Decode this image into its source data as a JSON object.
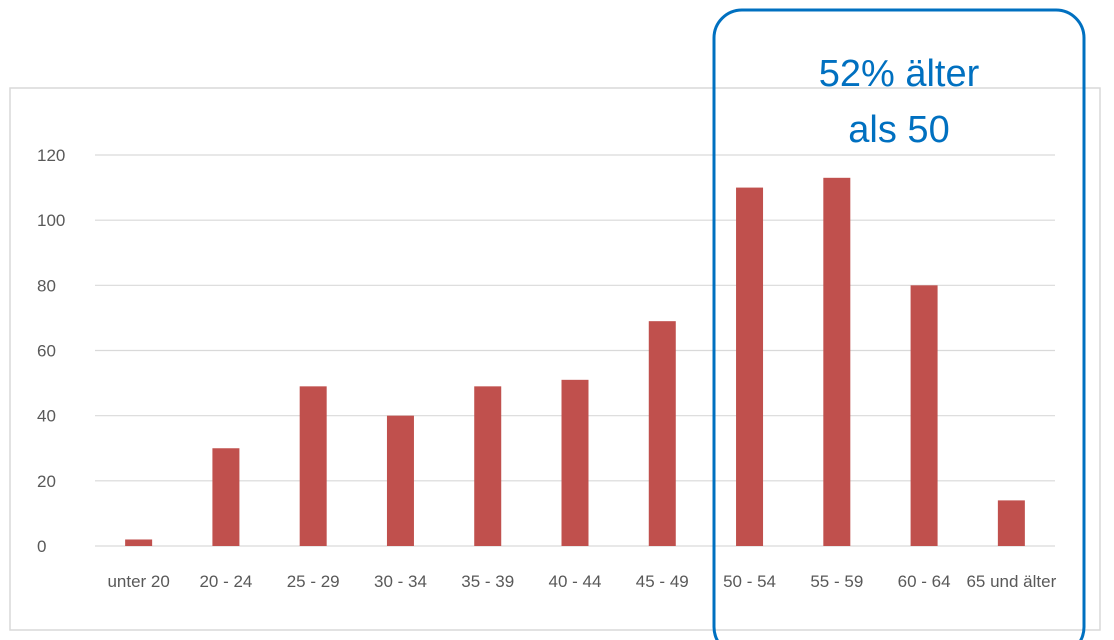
{
  "chart_data": {
    "type": "bar",
    "categories": [
      "unter 20",
      "20 - 24",
      "25 - 29",
      "30 - 34",
      "35 - 39",
      "40 - 44",
      "45 - 49",
      "50 - 54",
      "55 - 59",
      "60 - 64",
      "65 und älter"
    ],
    "values": [
      2,
      30,
      49,
      40,
      49,
      51,
      69,
      110,
      113,
      80,
      14
    ],
    "title": "",
    "xlabel": "",
    "ylabel": "",
    "ylim": [
      0,
      120
    ],
    "yticks": [
      0,
      20,
      40,
      60,
      80,
      100,
      120
    ],
    "grid": true,
    "bar_color": "#c0504d",
    "highlight": {
      "categories": [
        "50 - 54",
        "55 - 59",
        "60 - 64",
        "65 und älter"
      ],
      "text_line1": "52% älter",
      "text_line2": "als 50",
      "color": "#0070c0"
    }
  }
}
